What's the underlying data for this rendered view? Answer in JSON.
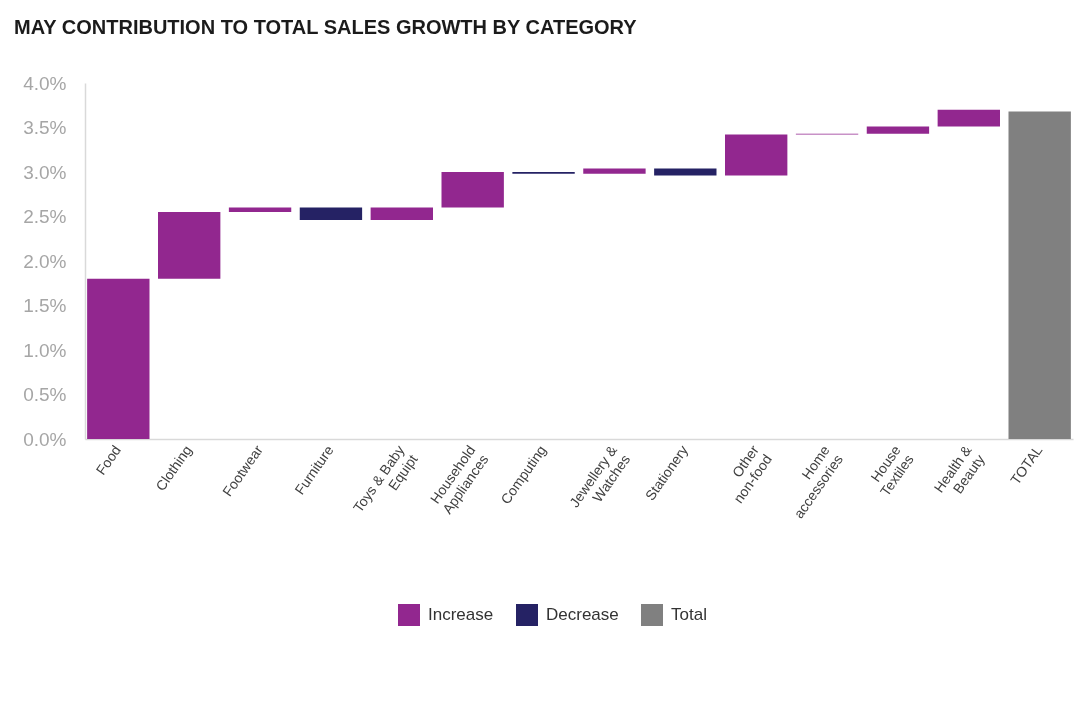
{
  "chart_data": {
    "type": "bar",
    "title": "MAY CONTRIBUTION TO TOTAL SALES GROWTH BY CATEGORY",
    "categories": [
      "Food",
      "Clothing",
      "Footwear",
      "Furniture",
      "Toys & Baby Equipt",
      "Household Appliances",
      "Computing",
      "Jewellery & Watches",
      "Stationery",
      "Other non-food",
      "Home accessories",
      "House Textiles",
      "Health & Beauty",
      "TOTAL"
    ],
    "series": [
      {
        "name": "Increase",
        "color": "#92278f",
        "values": [
          1.8,
          0.75,
          0.05,
          null,
          0.14,
          0.4,
          null,
          0.06,
          null,
          0.46,
          0.01,
          0.08,
          0.19,
          null
        ],
        "base": [
          0,
          1.8,
          2.55,
          null,
          2.46,
          2.6,
          null,
          2.98,
          null,
          2.96,
          3.42,
          3.43,
          3.51,
          null
        ]
      },
      {
        "name": "Decrease",
        "color": "#252264",
        "values": [
          null,
          null,
          null,
          -0.14,
          null,
          null,
          -0.02,
          null,
          -0.08,
          null,
          null,
          null,
          null,
          null
        ],
        "base": [
          null,
          null,
          null,
          2.6,
          null,
          null,
          3.0,
          null,
          3.04,
          null,
          null,
          null,
          null,
          null
        ]
      },
      {
        "name": "Total",
        "color": "#808080",
        "values": [
          null,
          null,
          null,
          null,
          null,
          null,
          null,
          null,
          null,
          null,
          null,
          null,
          null,
          3.68
        ],
        "base": [
          null,
          null,
          null,
          null,
          null,
          null,
          null,
          null,
          null,
          null,
          null,
          null,
          null,
          0
        ]
      }
    ],
    "ylim": [
      0,
      4
    ],
    "yticks": [
      {
        "value": 0,
        "label": "0.0%"
      },
      {
        "value": 0.5,
        "label": "0.5%"
      },
      {
        "value": 1,
        "label": "1.0%"
      },
      {
        "value": 1.5,
        "label": "1.5%"
      },
      {
        "value": 2,
        "label": "2.0%"
      },
      {
        "value": 2.5,
        "label": "2.5%"
      },
      {
        "value": 3,
        "label": "3.0%"
      },
      {
        "value": 3.5,
        "label": "3.5%"
      },
      {
        "value": 4,
        "label": "4.0%"
      }
    ],
    "grid": false,
    "legend": "bottom"
  }
}
